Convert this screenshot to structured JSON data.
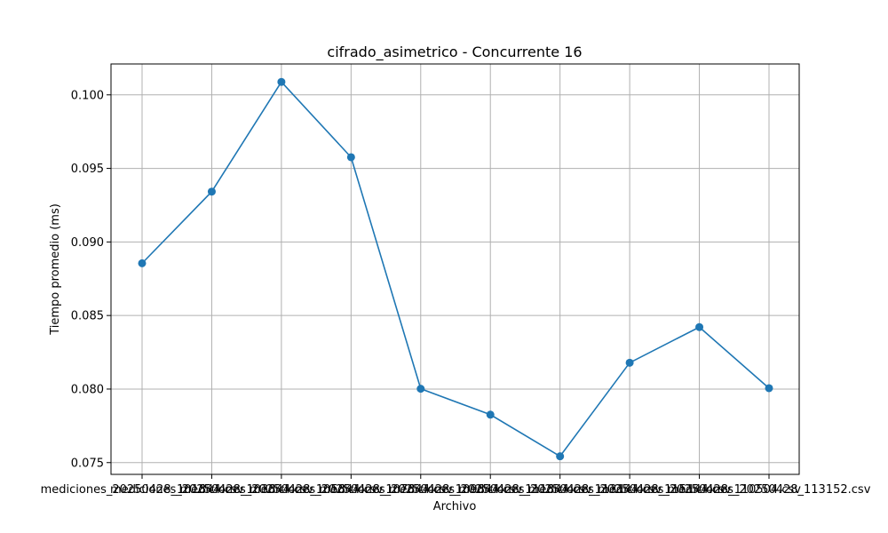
{
  "chart_data": {
    "type": "line",
    "title": "cifrado_asimetrico - Concurrente 16",
    "xlabel": "Archivo",
    "ylabel": "Tiempo promedio (ms)",
    "categories": [
      "mediciones_20250428_101844.csv",
      "mediciones_20250428_103844.csv",
      "mediciones_20250428_105844.csv",
      "mediciones_20250428_107844.csv",
      "mediciones_20250428_109844.csv",
      "mediciones_20250428_111844.csv",
      "mediciones_20250428_113144.csv",
      "mediciones_20250428_115144.csv",
      "mediciones_20250428_110504.csv",
      "mediciones_20250428_113152.csv"
    ],
    "series": [
      {
        "values": [
          0.08855,
          0.09342,
          0.10088,
          0.09576,
          0.08002,
          0.07826,
          0.07543,
          0.08179,
          0.08421,
          0.08006
        ],
        "color": "#1f77b4"
      }
    ],
    "yticks": [
      "0.075",
      "0.080",
      "0.085",
      "0.090",
      "0.095",
      "0.100"
    ],
    "ylim": [
      0.0742,
      0.1021
    ],
    "grid": true,
    "legend": "none"
  }
}
